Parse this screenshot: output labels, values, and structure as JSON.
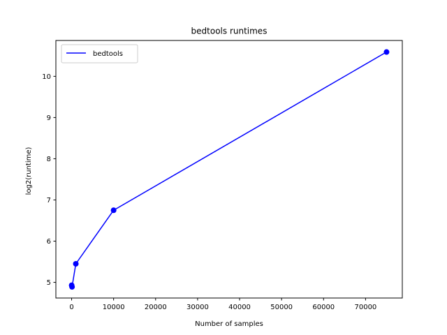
{
  "chart_data": {
    "type": "line",
    "title": "bedtools runtimes",
    "xlabel": "Number of samples",
    "ylabel": "log2(runtime)",
    "xlim": [
      -3750,
      78750
    ],
    "ylim": [
      4.62,
      10.87
    ],
    "xticks": [
      0,
      10000,
      20000,
      30000,
      40000,
      50000,
      60000,
      70000
    ],
    "xtick_labels": [
      "0",
      "10000",
      "20000",
      "30000",
      "40000",
      "50000",
      "60000",
      "70000"
    ],
    "yticks": [
      5,
      6,
      7,
      8,
      9,
      10
    ],
    "ytick_labels": [
      "5",
      "6",
      "7",
      "8",
      "9",
      "10"
    ],
    "grid": false,
    "legend_position": "upper-left",
    "series": [
      {
        "name": "bedtools",
        "color": "#0000ff",
        "marker": "circle",
        "x": [
          10,
          100,
          1000,
          10000,
          75000
        ],
        "y": [
          4.93,
          4.89,
          5.45,
          6.75,
          10.59
        ]
      }
    ]
  }
}
